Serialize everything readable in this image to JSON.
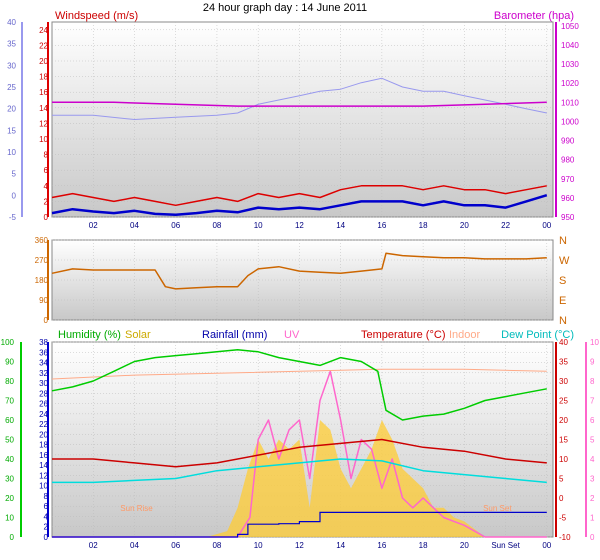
{
  "title": "24 hour graph day : 14 June 2011",
  "colors": {
    "windspeed": "#dd0000",
    "windspeed_avg": "#0000cc",
    "barometer": "#cc00cc",
    "temperature_line": "#9999ee",
    "winddir": "#cc6600",
    "humidity": "#00cc00",
    "solar": "#ffcc33",
    "rainfall": "#0000cc",
    "uv": "#ff66cc",
    "temperature": "#cc0000",
    "indoor": "#ffaa88",
    "dewpoint": "#00dddd"
  },
  "chart_data": [
    {
      "id": "wind-panel",
      "type": "line",
      "left_label": "Windspeed (m/s)",
      "right_label": "Barometer (hpa)",
      "x_ticks": [
        "02",
        "04",
        "06",
        "08",
        "10",
        "12",
        "14",
        "16",
        "18",
        "20",
        "22",
        "00"
      ],
      "y_left_outer_ticks": [
        -5,
        0,
        5,
        10,
        15,
        20,
        25,
        30,
        35,
        40
      ],
      "y_left_inner_ticks": [
        0,
        2,
        4,
        6,
        8,
        10,
        12,
        14,
        16,
        18,
        20,
        22,
        24
      ],
      "y_right_ticks": [
        950,
        960,
        970,
        980,
        990,
        1000,
        1010,
        1020,
        1030,
        1040,
        1050
      ],
      "ylim_wind": [
        0,
        25
      ],
      "ylim_baro": [
        950,
        1052
      ],
      "xlim_hours": [
        0,
        24.3
      ],
      "series": [
        {
          "key": "wind_gust",
          "x": [
            0,
            1,
            2,
            3,
            4,
            5,
            6,
            7,
            8,
            9,
            10,
            11,
            12,
            13,
            14,
            15,
            16,
            17,
            18,
            19,
            20,
            21,
            22,
            23,
            24
          ],
          "values": [
            2.5,
            3,
            2.5,
            2,
            2.5,
            2,
            1.5,
            2,
            2.5,
            2,
            3,
            2.5,
            3,
            2.5,
            3.5,
            4,
            4,
            4,
            3.5,
            4,
            3.5,
            3.5,
            3,
            3.5,
            4
          ]
        },
        {
          "key": "wind_avg",
          "x": [
            0,
            1,
            2,
            3,
            4,
            5,
            6,
            7,
            8,
            9,
            10,
            11,
            12,
            13,
            14,
            15,
            16,
            17,
            18,
            19,
            20,
            21,
            22,
            23,
            24
          ],
          "values": [
            0.5,
            1,
            0.7,
            0.5,
            0.8,
            0.4,
            0.3,
            0.5,
            0.8,
            0.6,
            1.2,
            1,
            1.2,
            1,
            1.5,
            2,
            2,
            2,
            1.5,
            2,
            1.5,
            1.5,
            1.2,
            2,
            2.8
          ]
        },
        {
          "key": "barometer",
          "x": [
            0,
            3,
            6,
            9,
            12,
            15,
            18,
            21,
            24
          ],
          "values": [
            1010,
            1010,
            1009,
            1008,
            1008,
            1008,
            1008,
            1009,
            1010
          ]
        },
        {
          "key": "secondary_line",
          "x": [
            0,
            2,
            4,
            6,
            8,
            9,
            10,
            11,
            12,
            13,
            14,
            15,
            16,
            17,
            18,
            19,
            20,
            21,
            22,
            23,
            24
          ],
          "values": [
            18.5,
            18.5,
            17.5,
            18,
            18.5,
            19,
            21,
            22,
            23,
            24,
            24.5,
            26,
            27,
            25,
            24,
            24,
            23,
            22,
            21,
            20,
            19
          ]
        }
      ]
    },
    {
      "id": "direction-panel",
      "type": "line",
      "left_ticks": [
        0,
        90,
        180,
        270,
        360
      ],
      "right_ticks": [
        "N",
        "E",
        "S",
        "W",
        "N"
      ],
      "ylim": [
        0,
        360
      ],
      "series": [
        {
          "key": "wind_direction",
          "x": [
            0,
            1,
            2,
            3,
            4,
            5,
            5.5,
            6,
            7,
            8,
            9,
            9.5,
            10,
            11,
            12,
            13,
            14,
            15,
            16,
            16.2,
            17,
            18,
            19,
            20,
            21,
            22,
            23,
            24
          ],
          "values": [
            210,
            230,
            225,
            225,
            225,
            225,
            150,
            140,
            145,
            150,
            150,
            200,
            230,
            240,
            220,
            215,
            210,
            220,
            230,
            300,
            290,
            285,
            280,
            280,
            275,
            275,
            275,
            280
          ]
        }
      ]
    },
    {
      "id": "multi-panel",
      "type": "line",
      "legend": [
        "Humidity (%)",
        "Solar",
        "Rainfall (mm)",
        "UV",
        "Temperature (°C)",
        "Indoor",
        "Dew Point (°C)"
      ],
      "annotations": [
        "Sun Rise",
        "Sun Set"
      ],
      "x_ticks": [
        "02",
        "04",
        "06",
        "08",
        "10",
        "12",
        "14",
        "16",
        "18",
        "20",
        "Sun Set",
        "00"
      ],
      "y_humidity_ticks": [
        0,
        10,
        20,
        30,
        40,
        50,
        60,
        70,
        80,
        90,
        100
      ],
      "y_rain_ticks": [
        0,
        2,
        4,
        6,
        8,
        10,
        12,
        14,
        16,
        18,
        20,
        22,
        24,
        26,
        28,
        30,
        32,
        34,
        36,
        38
      ],
      "y_temp_ticks": [
        -10,
        -5,
        0,
        5,
        10,
        15,
        20,
        25,
        30,
        35,
        40
      ],
      "y_uv_ticks": [
        0,
        1,
        2,
        3,
        4,
        5,
        6,
        7,
        8,
        9,
        10
      ],
      "ylim_humidity": [
        0,
        100
      ],
      "ylim_temp": [
        -10,
        40
      ],
      "ylim_rain": [
        0,
        38
      ],
      "series": [
        {
          "key": "humidity",
          "x": [
            0,
            1,
            2,
            3,
            4,
            5,
            6,
            7,
            8,
            9,
            10,
            11,
            12,
            13,
            14,
            15,
            15.8,
            16.2,
            17,
            18,
            19,
            20,
            21,
            22,
            23,
            24
          ],
          "values": [
            75,
            77,
            80,
            85,
            90,
            92,
            93,
            94,
            95,
            96,
            95,
            92,
            90,
            88,
            92,
            90,
            85,
            65,
            60,
            62,
            63,
            66,
            70,
            72,
            74,
            76
          ]
        },
        {
          "key": "indoor",
          "x": [
            0,
            4,
            8,
            12,
            16,
            20,
            24
          ],
          "values": [
            81,
            83,
            84,
            85,
            86,
            86,
            85
          ]
        },
        {
          "key": "temperature",
          "x": [
            0,
            2,
            4,
            6,
            8,
            10,
            12,
            14,
            16,
            18,
            20,
            22,
            24
          ],
          "values": [
            10,
            10,
            9,
            8,
            9,
            11,
            13,
            14,
            15,
            13,
            12,
            10,
            9
          ]
        },
        {
          "key": "dewpoint",
          "x": [
            0,
            2,
            4,
            6,
            8,
            10,
            12,
            14,
            16,
            18,
            20,
            22,
            24
          ],
          "values": [
            4,
            4,
            4.5,
            5,
            7,
            8,
            9,
            10,
            9.5,
            7,
            6,
            5,
            4
          ]
        },
        {
          "key": "rainfall",
          "x": [
            0,
            6,
            9,
            9.5,
            11,
            12,
            12.8,
            13,
            16,
            17,
            24
          ],
          "values": [
            0,
            0,
            0.5,
            2.5,
            2.6,
            3,
            3,
            4.8,
            4.8,
            4.8,
            4.8
          ]
        },
        {
          "key": "uv",
          "x": [
            0,
            9,
            9.6,
            10,
            10.5,
            11,
            11.5,
            12,
            12.5,
            13,
            13.5,
            14,
            14.5,
            15,
            15.5,
            16,
            16.5,
            17,
            17.5,
            18,
            18.5,
            19,
            19.5,
            20,
            21,
            24
          ],
          "values": [
            0,
            0,
            1,
            5,
            6,
            4,
            5.5,
            6,
            3,
            7,
            8.5,
            6,
            3,
            5,
            4.5,
            2.5,
            4,
            2,
            1.5,
            2,
            1.5,
            1,
            0.8,
            0.6,
            0,
            0
          ]
        },
        {
          "key": "solar",
          "x": [
            0,
            7.5,
            8.5,
            9,
            9.5,
            10,
            10.5,
            11,
            11.5,
            12,
            12.5,
            13,
            13.5,
            14,
            14.5,
            15,
            15.5,
            16,
            16.5,
            17,
            17.5,
            18,
            18.5,
            19,
            19.5,
            20,
            21,
            24
          ],
          "values": [
            0,
            0,
            0.3,
            1.5,
            3.5,
            5,
            4,
            5,
            4.5,
            5,
            1.5,
            6,
            5.5,
            3.5,
            2.5,
            3.5,
            4.5,
            6,
            5,
            3.5,
            3,
            2.5,
            1.5,
            1.5,
            1,
            0.8,
            0,
            0
          ]
        }
      ]
    }
  ]
}
